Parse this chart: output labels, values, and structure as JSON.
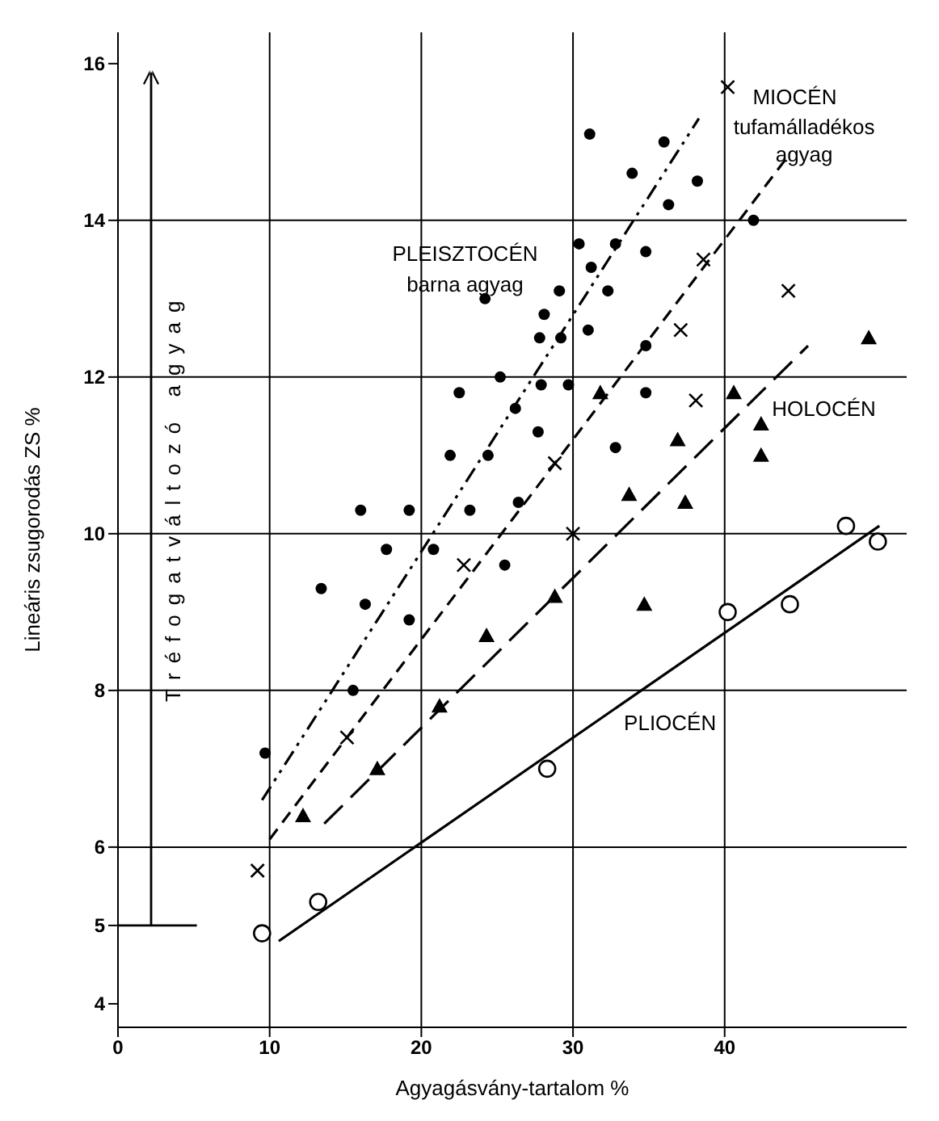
{
  "chart_data": {
    "type": "scatter",
    "xlabel": "Agyagásvány-tartalom %",
    "ylabel": "Lineáris zsugorodás ZS %",
    "xlim": [
      0,
      52
    ],
    "ylim": [
      3.7,
      16.4
    ],
    "xticks": [
      0,
      10,
      20,
      30,
      40
    ],
    "yticks": [
      4,
      5,
      6,
      8,
      10,
      12,
      14,
      16
    ],
    "grid": false,
    "legend": false,
    "series": [
      {
        "type": "scatter",
        "marker": "circle",
        "color": "#000000",
        "x": [
          16.0,
          19.2,
          23.2,
          17.7,
          20.8,
          25.5,
          13.4,
          16.3,
          19.2,
          15.5,
          9.7,
          26.4,
          21.9,
          24.4,
          27.7,
          26.2,
          22.5,
          25.2,
          27.9,
          29.7,
          29.2,
          27.8,
          28.1,
          24.2,
          29.1,
          31.1,
          36.0,
          33.9,
          38.2,
          36.3,
          30.4,
          32.8,
          34.8,
          41.9,
          31.2,
          32.3,
          31.0,
          34.8,
          34.8,
          32.8
        ],
        "values": [
          10.3,
          10.3,
          10.3,
          9.8,
          9.8,
          9.6,
          9.3,
          9.1,
          8.9,
          8.0,
          7.2,
          10.4,
          11.0,
          11.0,
          11.3,
          11.6,
          11.8,
          12.0,
          11.9,
          11.9,
          12.5,
          12.5,
          12.8,
          13.0,
          13.1,
          15.1,
          15.0,
          14.6,
          14.5,
          14.2,
          13.7,
          13.7,
          13.6,
          14.0,
          13.4,
          13.1,
          12.6,
          12.4,
          11.8,
          11.1
        ]
      },
      {
        "type": "scatter",
        "marker": "cross",
        "color": "#000000",
        "x": [
          40.2,
          38.6,
          44.2,
          37.1,
          38.1,
          28.8,
          30.0,
          22.8,
          15.1,
          9.2
        ],
        "values": [
          15.7,
          13.5,
          13.1,
          12.6,
          11.7,
          10.9,
          10.0,
          9.6,
          7.4,
          5.7
        ]
      },
      {
        "type": "scatter",
        "marker": "triangle",
        "color": "#000000",
        "x": [
          49.5,
          31.8,
          40.6,
          42.4,
          36.9,
          42.4,
          33.7,
          37.4,
          28.8,
          34.7,
          24.3,
          21.2,
          17.1,
          12.2
        ],
        "values": [
          12.5,
          11.8,
          11.8,
          11.4,
          11.2,
          11.0,
          10.5,
          10.4,
          9.2,
          9.1,
          8.7,
          7.8,
          7.0,
          6.4
        ]
      },
      {
        "type": "scatter",
        "marker": "circle-open",
        "color": "#000000",
        "x": [
          48.0,
          50.1,
          40.2,
          44.3,
          28.3,
          13.2,
          9.5
        ],
        "values": [
          10.1,
          9.9,
          9.0,
          9.1,
          7.0,
          5.3,
          4.9
        ]
      },
      {
        "type": "line",
        "marker": "none",
        "line_style": "dashdotdot",
        "color": "#000000",
        "x": [
          9.5,
          38.3
        ],
        "values": [
          6.6,
          15.3
        ]
      },
      {
        "type": "line",
        "marker": "none",
        "line_style": "dashed",
        "color": "#000000",
        "x": [
          10.0,
          44.1
        ],
        "values": [
          6.1,
          14.8
        ]
      },
      {
        "type": "line",
        "marker": "none",
        "line_style": "longdashed",
        "color": "#000000",
        "x": [
          13.6,
          45.5
        ],
        "values": [
          6.3,
          12.4
        ]
      },
      {
        "type": "line",
        "marker": "none",
        "line_style": "solid",
        "color": "#000000",
        "x": [
          10.6,
          50.2
        ],
        "values": [
          4.8,
          10.1
        ]
      }
    ],
    "ref_lines": [
      {
        "axis": "x",
        "value": 10
      },
      {
        "axis": "x",
        "value": 20
      },
      {
        "axis": "x",
        "value": 30
      },
      {
        "axis": "x",
        "value": 40
      },
      {
        "axis": "y",
        "value": 6
      },
      {
        "axis": "y",
        "value": 8
      },
      {
        "axis": "y",
        "value": 10
      },
      {
        "axis": "y",
        "value": 12
      },
      {
        "axis": "y",
        "value": 14
      }
    ],
    "annotations": [
      "Tréfogatváltozó agyag",
      "PLEISZTOCÉN",
      "barna agyag",
      "MIOCÉN",
      "tufamálladékos",
      "agyag",
      "HOLOCÉN",
      "PLIOCÉN"
    ]
  }
}
